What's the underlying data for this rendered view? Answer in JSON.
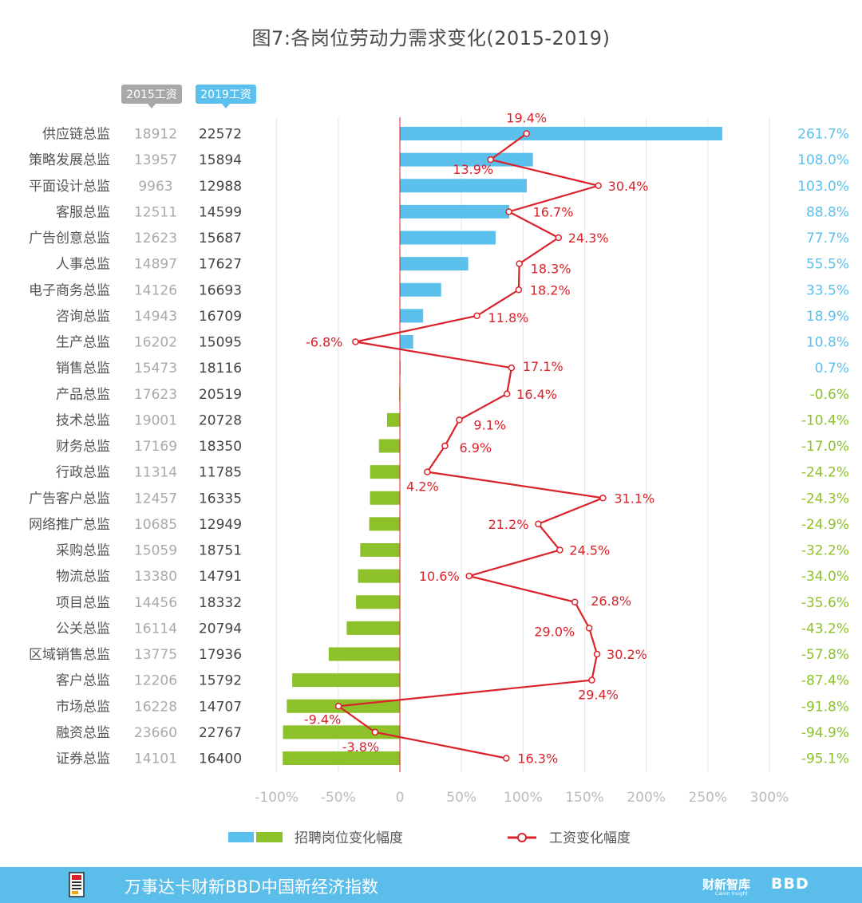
{
  "title": "图7:各岗位劳动力需求变化(2015-2019)",
  "chart_data": {
    "type": "bar",
    "title": "图7:各岗位劳动力需求变化(2015-2019)",
    "column_headers": {
      "salary_2015": "2015工资",
      "salary_2019": "2019工资"
    },
    "categories": [
      "供应链总监",
      "策略发展总监",
      "平面设计总监",
      "客服总监",
      "广告创意总监",
      "人事总监",
      "电子商务总监",
      "咨询总监",
      "生产总监",
      "销售总监",
      "产品总监",
      "技术总监",
      "财务总监",
      "行政总监",
      "广告客户总监",
      "网络推广总监",
      "采购总监",
      "物流总监",
      "项目总监",
      "公关总监",
      "区域销售总监",
      "客户总监",
      "市场总监",
      "融资总监",
      "证券总监"
    ],
    "salary_2015": [
      "18912",
      "13957",
      "9963",
      "12511",
      "12623",
      "14897",
      "14126",
      "14943",
      "16202",
      "15473",
      "17623",
      "19001",
      "17169",
      "11314",
      "12457",
      "10685",
      "15059",
      "13380",
      "14456",
      "16114",
      "13775",
      "12206",
      "16228",
      "23660",
      "14101"
    ],
    "salary_2019": [
      "22572",
      "15894",
      "12988",
      "14599",
      "15687",
      "17627",
      "16693",
      "16709",
      "15095",
      "18116",
      "20519",
      "20728",
      "18350",
      "11785",
      "16335",
      "12949",
      "18751",
      "14791",
      "18332",
      "20794",
      "17936",
      "15792",
      "14707",
      "22767",
      "16400"
    ],
    "series": [
      {
        "name": "招聘岗位变化幅度",
        "type": "bar",
        "values": [
          261.7,
          108.0,
          103.0,
          88.8,
          77.7,
          55.5,
          33.5,
          18.9,
          10.8,
          0.7,
          -0.6,
          -10.4,
          -17.0,
          -24.2,
          -24.3,
          -24.9,
          -32.2,
          -34.0,
          -35.6,
          -43.2,
          -57.8,
          -87.4,
          -91.8,
          -94.9,
          -95.1
        ],
        "labels": [
          "261.7%",
          "108.0%",
          "103.0%",
          "88.8%",
          "77.7%",
          "55.5%",
          "33.5%",
          "18.9%",
          "10.8%",
          "0.7%",
          "-0.6%",
          "-10.4%",
          "-17.0%",
          "-24.2%",
          "-24.3%",
          "-24.9%",
          "-32.2%",
          "-34.0%",
          "-35.6%",
          "-43.2%",
          "-57.8%",
          "-87.4%",
          "-91.8%",
          "-94.9%",
          "-95.1%"
        ]
      },
      {
        "name": "工资变化幅度",
        "type": "line",
        "values": [
          19.4,
          13.9,
          30.4,
          16.7,
          24.3,
          18.3,
          18.2,
          11.8,
          -6.8,
          17.1,
          16.4,
          9.1,
          6.9,
          4.2,
          31.1,
          21.2,
          24.5,
          10.6,
          26.8,
          29.0,
          30.2,
          29.4,
          -9.4,
          -3.8,
          16.3
        ],
        "labels": [
          "19.4%",
          "13.9%",
          "30.4%",
          "16.7%",
          "24.3%",
          "18.3%",
          "18.2%",
          "11.8%",
          "-6.8%",
          "17.1%",
          "16.4%",
          "9.1%",
          "6.9%",
          "4.2%",
          "31.1%",
          "21.2%",
          "24.5%",
          "10.6%",
          "26.8%",
          "29.0%",
          "30.2%",
          "29.4%",
          "-9.4%",
          "-3.8%",
          "16.3%"
        ]
      }
    ],
    "x_axis": {
      "ticks": [
        -100,
        -50,
        0,
        50,
        100,
        150,
        200,
        250,
        300
      ],
      "tick_labels": [
        "-100%",
        "-50%",
        "0",
        "50%",
        "100%",
        "150%",
        "200%",
        "250%",
        "300%"
      ],
      "range": [
        -100,
        300
      ]
    },
    "line_scale_note_units": "percent",
    "legend": {
      "position": "bottom",
      "bar_label": "招聘岗位变化幅度",
      "line_label": "工资变化幅度"
    },
    "colors": {
      "positive_bar": "#5bc0ec",
      "negative_bar": "#8cc12a",
      "line": "#d9222a",
      "salary_2015_text": "#aaaaaa",
      "salary_2019_text": "#444444",
      "header_2015_bg": "#a8a8a8",
      "header_2019_bg": "#5bc0ec",
      "grid": "#e6e6e6"
    },
    "grid": true
  },
  "footer": {
    "text": "万事达卡财新BBD中国新经济指数",
    "brand1": "财新智库",
    "brand1_sub": "Caixin Insight",
    "brand2": "BBD",
    "background": "#5bbde9"
  }
}
